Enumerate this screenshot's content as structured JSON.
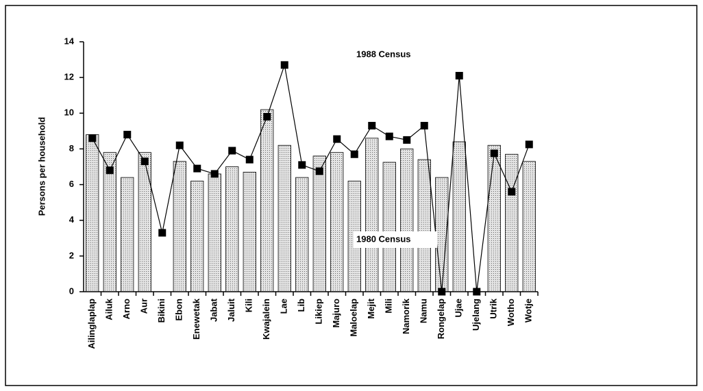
{
  "chart_data": {
    "type": "bar_line",
    "y_label": "Persons per household",
    "categories": [
      "Ailinglaplap",
      "Ailuk",
      "Arno",
      "Aur",
      "Bikini",
      "Ebon",
      "Enewetak",
      "Jabat",
      "Jaluit",
      "Kili",
      "Kwajalein",
      "Lae",
      "Lib",
      "Likiep",
      "Majuro",
      "Maloelap",
      "Mejit",
      "Mili",
      "Namorik",
      "Namu",
      "Rongelap",
      "Ujae",
      "Ujelang",
      "Utrik",
      "Wotho",
      "Wotje"
    ],
    "series": [
      {
        "name": "1980 Census",
        "type": "bar",
        "color": "#c8c8c8",
        "values": [
          8.8,
          7.8,
          6.4,
          7.8,
          null,
          7.3,
          6.2,
          6.6,
          7.0,
          6.7,
          10.2,
          8.2,
          6.4,
          7.6,
          7.8,
          6.2,
          8.6,
          7.25,
          8.0,
          7.4,
          6.4,
          8.4,
          null,
          8.2,
          7.7,
          7.3
        ]
      },
      {
        "name": "1988 Census",
        "type": "line",
        "color": "#000000",
        "values": [
          8.6,
          6.8,
          8.8,
          7.3,
          3.3,
          8.2,
          6.9,
          6.6,
          7.9,
          7.4,
          9.8,
          12.7,
          7.1,
          6.75,
          8.55,
          7.7,
          9.3,
          8.7,
          8.5,
          9.3,
          0,
          12.1,
          0,
          7.75,
          5.6,
          8.25
        ]
      }
    ],
    "ylim": [
      0,
      14
    ],
    "yticks": [
      0,
      2,
      4,
      6,
      8,
      10,
      12,
      14
    ],
    "grid": false
  }
}
